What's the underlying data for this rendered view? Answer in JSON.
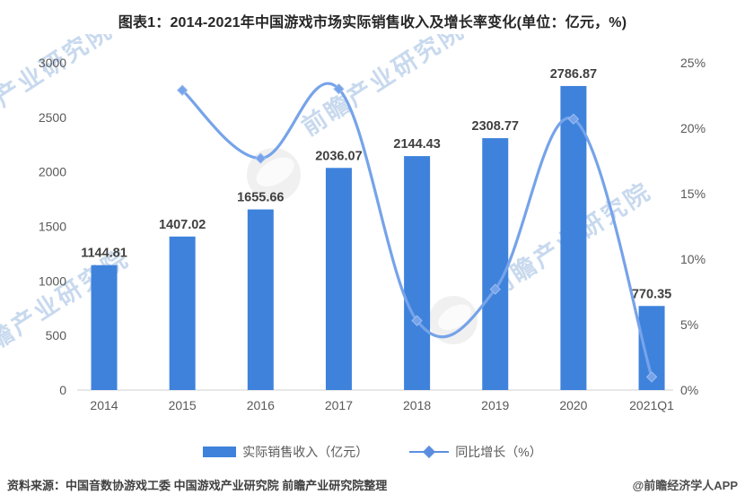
{
  "title": "图表1：2014-2021年中国游戏市场实际销售收入及增长率变化(单位：亿元，%)",
  "chart_data": {
    "type": "bar",
    "subtype": "bar+line-combo",
    "categories": [
      "2014",
      "2015",
      "2016",
      "2017",
      "2018",
      "2019",
      "2020",
      "2021Q1"
    ],
    "series": [
      {
        "name": "实际销售收入（亿元）",
        "type": "bar",
        "axis": "left",
        "color": "#3E82DC",
        "values": [
          1144.81,
          1407.02,
          1655.66,
          2036.07,
          2144.43,
          2308.77,
          2786.87,
          770.35
        ],
        "data_labels": [
          "1144.81",
          "1407.02",
          "1655.66",
          "2036.07",
          "2144.43",
          "2308.77",
          "2786.87",
          "770.35"
        ]
      },
      {
        "name": "同比增长（%）",
        "type": "line",
        "axis": "right",
        "color": "#76A3E9",
        "marker": "diamond",
        "smooth": true,
        "values": [
          null,
          22.9,
          17.7,
          23.0,
          5.3,
          7.7,
          20.7,
          1.0
        ]
      }
    ],
    "left_axis": {
      "min": 0,
      "max": 3000,
      "step": 500,
      "ticks": [
        "0",
        "500",
        "1000",
        "1500",
        "2000",
        "2500",
        "3000"
      ]
    },
    "right_axis": {
      "min": 0,
      "max": 25,
      "step": 5,
      "ticks": [
        "0%",
        "5%",
        "10%",
        "15%",
        "20%",
        "25%"
      ]
    },
    "grid": false,
    "legend_position": "bottom",
    "axis_label_color": "#595959",
    "data_label_color": "#404040",
    "baseline_color": "#d9d9d9"
  },
  "watermark": {
    "text": "前瞻产业研究院",
    "color": "#bfd3ec"
  },
  "footer": {
    "source": "资料来源：中国音数协游戏工委 中国游戏产业研究院 前瞻产业研究院整理",
    "credit": "@前瞻经济学人APP"
  }
}
